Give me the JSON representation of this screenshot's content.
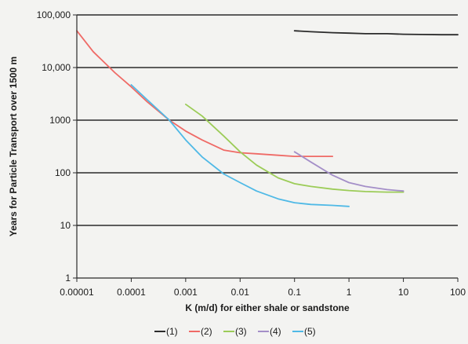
{
  "chart_data": {
    "type": "line",
    "title": "",
    "xlabel": "K (m/d) for either shale or sandstone",
    "ylabel": "Years for Particle Transport over 1500 m",
    "xscale": "log",
    "yscale": "log",
    "xlim": [
      1e-05,
      100
    ],
    "ylim": [
      1,
      100000
    ],
    "grid": "horizontal",
    "legend_position": "bottom",
    "x_tick_labels": [
      "0.00001",
      "0.0001",
      "0.001",
      "0.01",
      "0.1",
      "1",
      "10",
      "100"
    ],
    "y_tick_labels": [
      "1",
      "10",
      "100",
      "1000",
      "10,000",
      "100,000"
    ],
    "series": [
      {
        "name": "(1)",
        "color": "#2b2b2b",
        "x": [
          0.1,
          0.2,
          0.5,
          1,
          2,
          5,
          10,
          20,
          50,
          100
        ],
        "y": [
          50000,
          48000,
          46000,
          45000,
          44000,
          44000,
          43000,
          42500,
          42000,
          42000
        ]
      },
      {
        "name": "(2)",
        "color": "#ef6a66",
        "x": [
          1e-05,
          2e-05,
          5e-05,
          0.0001,
          0.0002,
          0.0005,
          0.001,
          0.002,
          0.005,
          0.01,
          0.02,
          0.05,
          0.1,
          0.2,
          0.5
        ],
        "y": [
          50000,
          20000,
          8000,
          4300,
          2200,
          1000,
          620,
          420,
          270,
          240,
          230,
          215,
          205,
          205,
          205
        ]
      },
      {
        "name": "(3)",
        "color": "#9ccc58",
        "x": [
          0.001,
          0.002,
          0.005,
          0.01,
          0.02,
          0.05,
          0.1,
          0.2,
          0.5,
          1,
          2,
          5,
          10
        ],
        "y": [
          2000,
          1200,
          500,
          250,
          140,
          80,
          62,
          55,
          49,
          46,
          44,
          43,
          43
        ]
      },
      {
        "name": "(4)",
        "color": "#a48fc8",
        "x": [
          0.1,
          0.2,
          0.5,
          1,
          2,
          5,
          10
        ],
        "y": [
          250,
          160,
          90,
          65,
          55,
          48,
          45
        ]
      },
      {
        "name": "(5)",
        "color": "#4fb9e6",
        "x": [
          0.0001,
          0.0002,
          0.0005,
          0.001,
          0.002,
          0.005,
          0.01,
          0.02,
          0.05,
          0.1,
          0.2,
          0.5,
          1
        ],
        "y": [
          4700,
          2400,
          1000,
          420,
          200,
          95,
          65,
          45,
          32,
          27,
          25,
          24,
          23
        ]
      }
    ]
  }
}
